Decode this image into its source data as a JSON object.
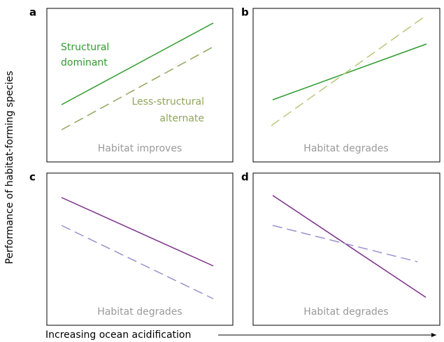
{
  "panels": [
    {
      "letter": "a",
      "caption": "Habitat improves",
      "solid_label": [
        "Structural",
        "dominant"
      ],
      "dashed_label": [
        "Less-structural",
        "alternate"
      ]
    },
    {
      "letter": "b",
      "caption": "Habitat degrades"
    },
    {
      "letter": "c",
      "caption": "Habitat degrades"
    },
    {
      "letter": "d",
      "caption": "Habitat degrades"
    }
  ],
  "y_axis_label": "Performance of habitat-forming species",
  "x_axis_label": "Increasing ocean acidification"
}
